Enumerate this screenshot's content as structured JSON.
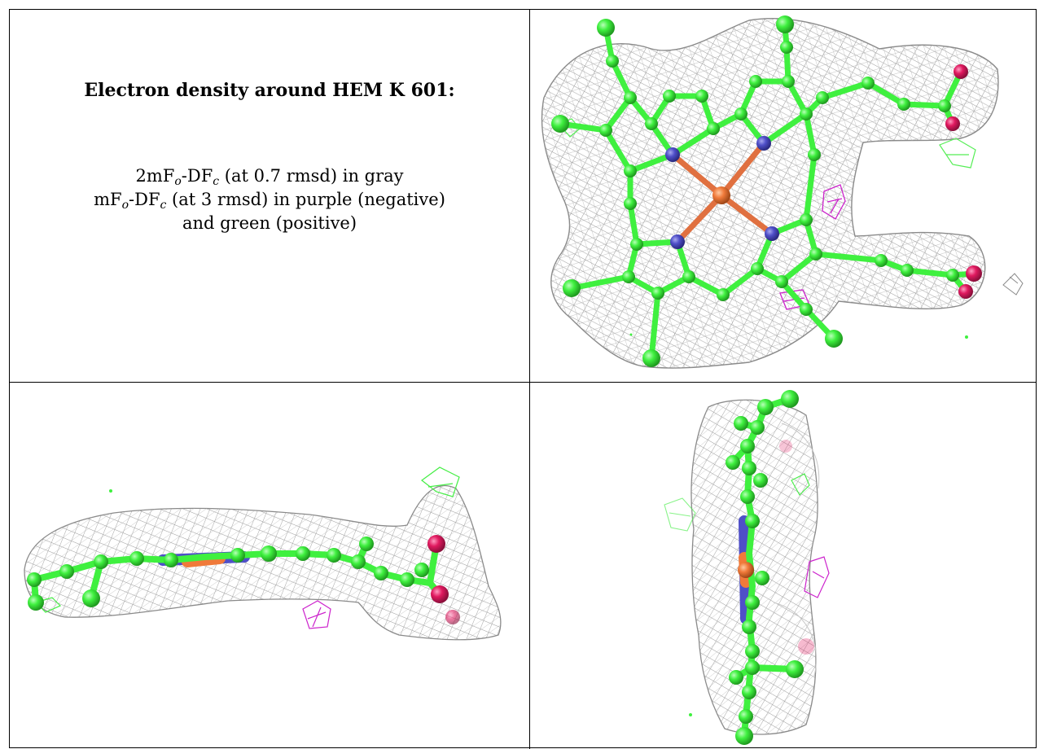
{
  "title": "Electron density around HEM K 601:",
  "legend": {
    "line1": {
      "a": "2mF",
      "sub1": "o",
      "b": "-DF",
      "sub2": "c",
      "rest": " (at 0.7 rmsd) in gray"
    },
    "line2": {
      "a": "mF",
      "sub1": "o",
      "b": "-DF",
      "sub2": "c",
      "rest": " (at 3 rmsd) in purple (negative)"
    },
    "line3": "and green (positive)"
  },
  "colors": {
    "carbon": "#3ff03f",
    "nitrogen": "#4f4fc8",
    "iron": "#f07a3a",
    "oxygen": "#e0195f",
    "mesh": "#9a9a9a",
    "negative_density": "#cc22cc",
    "positive_density": "#44ee44"
  },
  "panels": [
    {
      "view": "front",
      "molecule": "heme"
    },
    {
      "view": "side-horizontal",
      "molecule": "heme"
    },
    {
      "view": "side-vertical",
      "molecule": "heme"
    }
  ]
}
